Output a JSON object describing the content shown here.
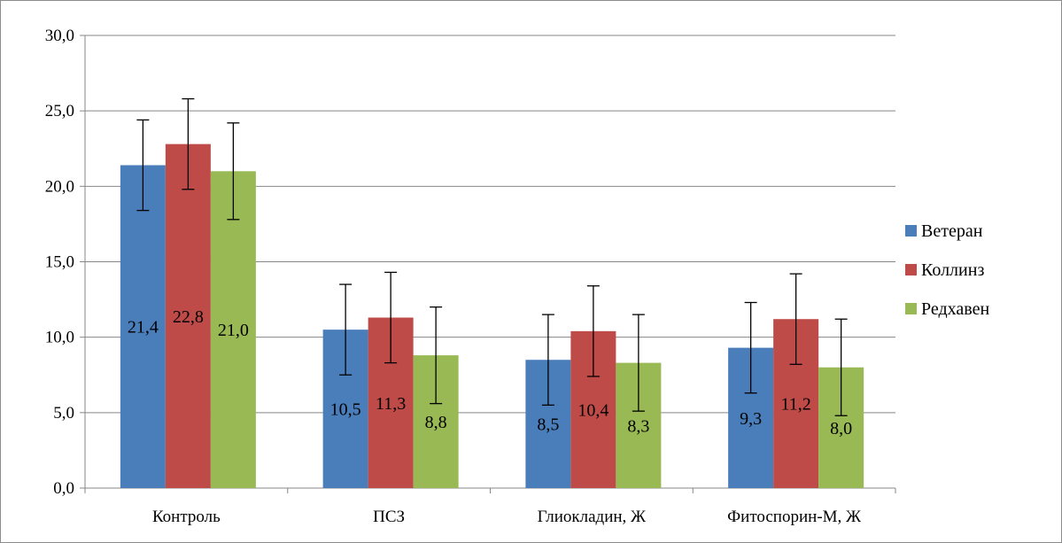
{
  "chart_data": {
    "type": "bar",
    "categories": [
      "Контроль",
      "ПСЗ",
      "Глиокладин,  Ж",
      "Фитоспорин-М,  Ж"
    ],
    "series": [
      {
        "name": "Ветеран",
        "color": "#4a7ebb",
        "values": [
          21.4,
          10.5,
          8.5,
          9.3
        ],
        "labels": [
          "21,4",
          "10,5",
          "8,5",
          "9,3"
        ],
        "errors": [
          3.0,
          3.0,
          3.0,
          3.0
        ]
      },
      {
        "name": "Коллинз",
        "color": "#be4b48",
        "values": [
          22.8,
          11.3,
          10.4,
          11.2
        ],
        "labels": [
          "22,8",
          "11,3",
          "10,4",
          "11,2"
        ],
        "errors": [
          3.0,
          3.0,
          3.0,
          3.0
        ]
      },
      {
        "name": "Редхавен",
        "color": "#98b954",
        "values": [
          21.0,
          8.8,
          8.3,
          8.0
        ],
        "labels": [
          "21,0",
          "8,8",
          "8,3",
          "8,0"
        ],
        "errors": [
          3.2,
          3.2,
          3.2,
          3.2
        ]
      }
    ],
    "y_ticks": [
      "0,0",
      "5,0",
      "10,0",
      "15,0",
      "20,0",
      "25,0",
      "30,0"
    ],
    "ylim": [
      0,
      30
    ],
    "grid": true,
    "legend_position": "right",
    "error_bars": true,
    "title": "",
    "xlabel": "",
    "ylabel": ""
  }
}
